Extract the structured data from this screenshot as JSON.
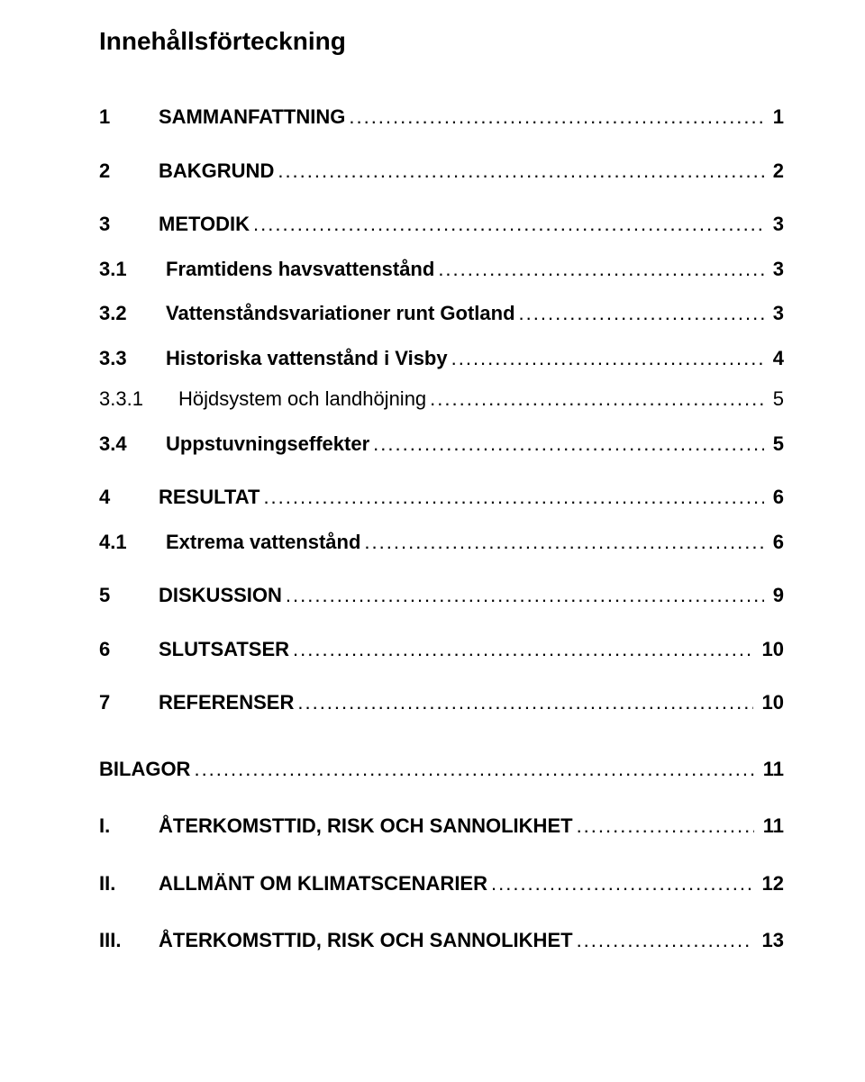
{
  "title": "Innehållsförteckning",
  "entries": [
    {
      "level": 1,
      "num": "1",
      "label": "SAMMANFATTNING",
      "page": "1",
      "bold": true
    },
    {
      "level": 1,
      "num": "2",
      "label": "BAKGRUND",
      "page": "2",
      "bold": true
    },
    {
      "level": 1,
      "num": "3",
      "label": "METODIK",
      "page": "3",
      "bold": true
    },
    {
      "level": 2,
      "num": "3.1",
      "label": "Framtidens havsvattenstånd",
      "page": "3",
      "bold": true
    },
    {
      "level": 2,
      "num": "3.2",
      "label": "Vattenståndsvariationer runt Gotland",
      "page": "3",
      "bold": true
    },
    {
      "level": 2,
      "num": "3.3",
      "label": "Historiska vattenstånd i Visby",
      "page": "4",
      "bold": true
    },
    {
      "level": 3,
      "num": "3.3.1",
      "label": "Höjdsystem och landhöjning",
      "page": "5",
      "bold": false
    },
    {
      "level": 2,
      "num": "3.4",
      "label": "Uppstuvningseffekter",
      "page": "5",
      "bold": true
    },
    {
      "level": 1,
      "num": "4",
      "label": "RESULTAT",
      "page": "6",
      "bold": true
    },
    {
      "level": 2,
      "num": "4.1",
      "label": "Extrema vattenstånd",
      "page": "6",
      "bold": true
    },
    {
      "level": 1,
      "num": "5",
      "label": "DISKUSSION",
      "page": "9",
      "bold": true
    },
    {
      "level": 1,
      "num": "6",
      "label": "SLUTSATSER",
      "page": "10",
      "bold": true
    },
    {
      "level": 1,
      "num": "7",
      "label": "REFERENSER",
      "page": "10",
      "bold": true
    }
  ],
  "appendix_header": {
    "label": "BILAGOR",
    "page": "11"
  },
  "appendix": [
    {
      "num": "I.",
      "label": "ÅTERKOMSTTID, RISK OCH SANNOLIKHET",
      "page": "11"
    },
    {
      "num": "II.",
      "label": "ALLMÄNT OM KLIMATSCENARIER",
      "page": "12"
    },
    {
      "num": "III.",
      "label": "ÅTERKOMSTTID, RISK OCH SANNOLIKHET",
      "page": "13"
    }
  ],
  "colors": {
    "text": "#000000",
    "background": "#ffffff"
  },
  "font": {
    "family": "Arial",
    "title_size_pt": 21,
    "entry_size_pt": 17
  }
}
